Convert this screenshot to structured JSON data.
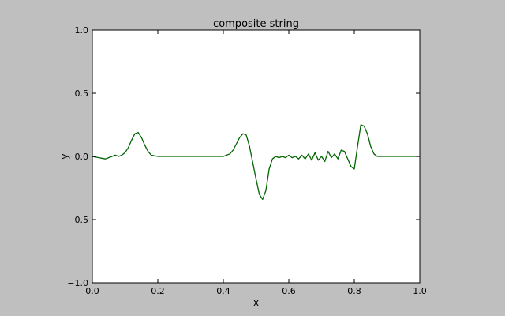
{
  "chart_data": {
    "type": "line",
    "title": "composite string",
    "xlabel": "x",
    "ylabel": "y",
    "xlim": [
      0.0,
      1.0
    ],
    "ylim": [
      -1.0,
      1.0
    ],
    "xticks": [
      "0.0",
      "0.2",
      "0.4",
      "0.6",
      "0.8",
      "1.0"
    ],
    "yticks": [
      "1.0",
      "0.5",
      "0.0",
      "−0.5",
      "−1.0"
    ],
    "grid": false,
    "background": "#bfbfbf",
    "plot_background": "#ffffff",
    "series": [
      {
        "color": "#006400",
        "x": [
          0.0,
          0.02,
          0.04,
          0.05,
          0.06,
          0.07,
          0.08,
          0.09,
          0.1,
          0.11,
          0.12,
          0.13,
          0.14,
          0.15,
          0.16,
          0.17,
          0.18,
          0.2,
          0.25,
          0.3,
          0.35,
          0.4,
          0.42,
          0.43,
          0.44,
          0.45,
          0.46,
          0.47,
          0.48,
          0.49,
          0.5,
          0.51,
          0.52,
          0.53,
          0.54,
          0.55,
          0.56,
          0.57,
          0.58,
          0.59,
          0.6,
          0.61,
          0.62,
          0.63,
          0.64,
          0.65,
          0.66,
          0.67,
          0.68,
          0.69,
          0.7,
          0.71,
          0.72,
          0.73,
          0.74,
          0.75,
          0.76,
          0.77,
          0.78,
          0.79,
          0.8,
          0.81,
          0.82,
          0.83,
          0.84,
          0.85,
          0.86,
          0.87,
          0.88,
          0.9,
          0.95,
          1.0
        ],
        "y": [
          0.0,
          -0.01,
          -0.02,
          -0.01,
          0.0,
          0.01,
          0.0,
          0.01,
          0.03,
          0.07,
          0.13,
          0.18,
          0.19,
          0.15,
          0.09,
          0.04,
          0.01,
          0.0,
          0.0,
          0.0,
          0.0,
          0.0,
          0.02,
          0.05,
          0.1,
          0.15,
          0.18,
          0.17,
          0.08,
          -0.05,
          -0.18,
          -0.3,
          -0.34,
          -0.27,
          -0.1,
          -0.02,
          0.0,
          -0.01,
          0.0,
          -0.01,
          0.01,
          -0.01,
          0.0,
          -0.02,
          0.01,
          -0.02,
          0.02,
          -0.03,
          0.03,
          -0.03,
          0.0,
          -0.04,
          0.04,
          -0.01,
          0.02,
          -0.02,
          0.05,
          0.04,
          -0.02,
          -0.08,
          -0.1,
          0.08,
          0.25,
          0.24,
          0.18,
          0.08,
          0.02,
          0.0,
          0.0,
          0.0,
          0.0,
          0.0
        ]
      }
    ]
  }
}
